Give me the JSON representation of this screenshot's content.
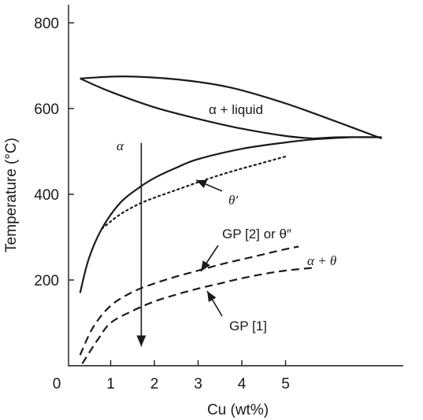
{
  "chart_data": {
    "type": "line",
    "title": "",
    "xlabel": "Cu (wt%)",
    "ylabel": "Temperature (°C)",
    "xlim": [
      0,
      7.2
    ],
    "ylim": [
      0,
      850
    ],
    "x_ticks": [
      0,
      1,
      2,
      3,
      4,
      5
    ],
    "x_tick_labels": [
      "0",
      "1",
      "2",
      "3",
      "4",
      "5"
    ],
    "y_ticks": [
      200,
      400,
      600,
      800
    ],
    "y_tick_labels": [
      "200",
      "400",
      "600",
      "800"
    ],
    "grid": false,
    "series": [
      {
        "style": "solid",
        "x": [
          0.3,
          1.3,
          2.5,
          3.7,
          5.0,
          6.2,
          7.2
        ],
        "y": [
          670,
          675,
          668,
          650,
          612,
          568,
          530
        ]
      },
      {
        "style": "solid",
        "x": [
          0.3,
          1.0,
          2.0,
          3.0,
          4.0,
          5.0,
          5.65
        ],
        "y": [
          670,
          639,
          603,
          576,
          553,
          536,
          530
        ]
      },
      {
        "style": "solid",
        "x": [
          5.65,
          6.2,
          6.8,
          7.2
        ],
        "y": [
          530,
          533,
          533,
          533
        ]
      },
      {
        "style": "solid",
        "x": [
          0.3,
          0.5,
          0.8,
          1.2,
          1.6,
          2.0,
          2.5,
          3.0,
          4.0,
          5.0,
          5.65,
          6.5,
          7.2
        ],
        "y": [
          170,
          250,
          320,
          378,
          412,
          438,
          462,
          482,
          506,
          521,
          528,
          533,
          533
        ]
      },
      {
        "style": "dotted",
        "x": [
          0.8,
          1.2,
          1.6,
          2.0,
          2.5,
          3.0,
          3.5,
          4.0,
          4.5,
          5.0
        ],
        "y": [
          320,
          352,
          375,
          392,
          410,
          428,
          445,
          460,
          474,
          488
        ]
      },
      {
        "style": "dashed",
        "x": [
          0.3,
          0.6,
          1.0,
          1.5,
          2.0,
          2.5,
          3.0,
          3.5,
          4.0,
          4.5,
          5.0,
          5.3
        ],
        "y": [
          25,
          90,
          140,
          172,
          192,
          208,
          222,
          236,
          248,
          260,
          272,
          278
        ]
      },
      {
        "style": "dashed",
        "x": [
          0.35,
          0.7,
          1.0,
          1.5,
          2.0,
          2.5,
          3.0,
          3.5,
          4.0,
          4.5,
          5.0,
          5.6
        ],
        "y": [
          5,
          60,
          100,
          128,
          150,
          166,
          180,
          192,
          204,
          214,
          222,
          228
        ]
      }
    ],
    "composition_line": {
      "x": 1.7,
      "y_top": 520,
      "y_bottom": 45
    },
    "annotations": {
      "alpha_liquid": "α + liquid",
      "alpha": "α",
      "theta_prime": "θ′",
      "gp2": "GP [2] or θ″",
      "alpha_theta": "α + θ",
      "gp1": "GP [1]"
    }
  }
}
